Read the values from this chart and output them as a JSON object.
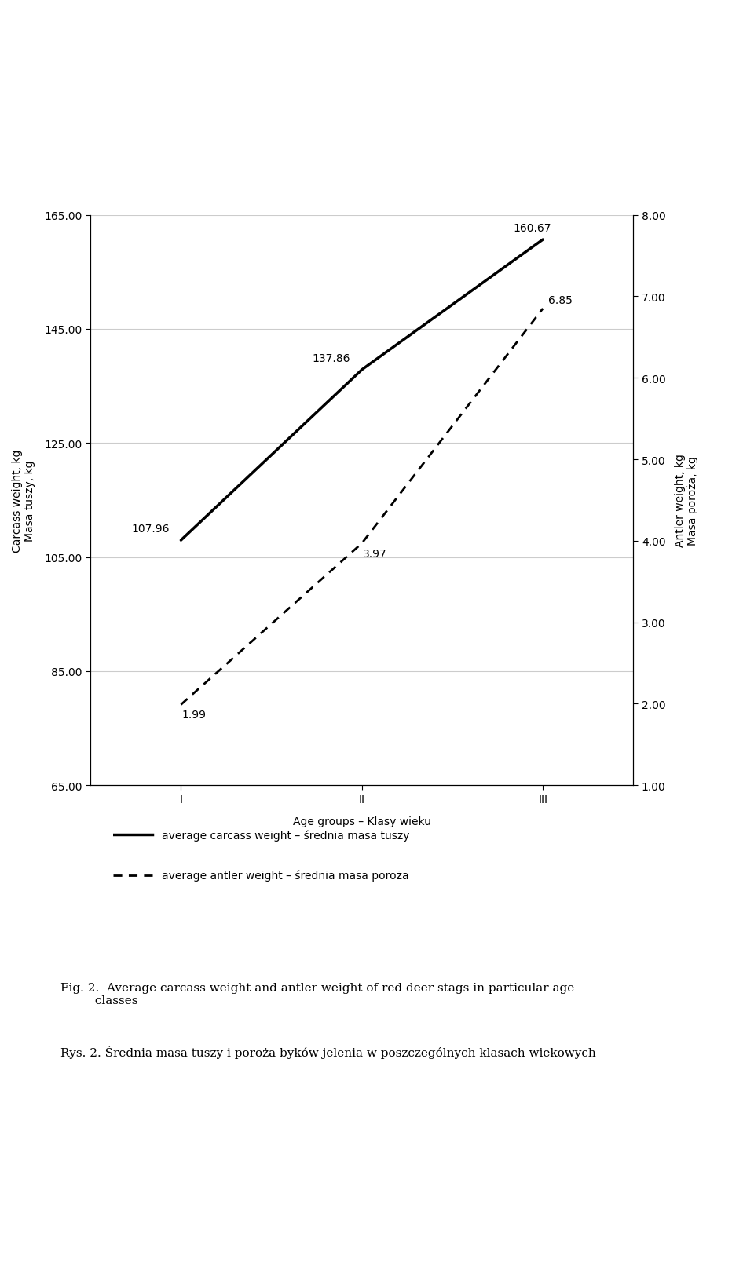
{
  "age_groups": [
    "I",
    "II",
    "III"
  ],
  "carcass_weight": [
    107.96,
    137.86,
    160.67
  ],
  "antler_weight": [
    1.99,
    3.97,
    6.85
  ],
  "left_ylim": [
    65.0,
    165.0
  ],
  "left_yticks": [
    65.0,
    85.0,
    105.0,
    125.0,
    145.0,
    165.0
  ],
  "right_ylim": [
    1.0,
    8.0
  ],
  "right_yticks": [
    1.0,
    2.0,
    3.0,
    4.0,
    5.0,
    6.0,
    7.0,
    8.0
  ],
  "left_ylabel": "Carcass weight, kg\nMasa tuszy, kg",
  "right_ylabel": "Antler weight, kg\nMasa poroża, kg",
  "xlabel": "Age groups – Klasy wieku",
  "legend_carcass": "average carcass weight – średnia masa tuszy",
  "legend_antler": "average antler weight – średnia masa poroża",
  "fig_caption_en": "Fig. 2.  Average carcass weight and antler weight of red deer stags in particular age\n         classes",
  "fig_caption_pl": "Rys. 2. Średnia masa tuszy i poroża byków jelenia w poszczególnych klasach wiekowych",
  "bg_color": "#ffffff",
  "line_color": "#000000",
  "annotation_fontsize": 10,
  "axis_fontsize": 10,
  "label_fontsize": 10,
  "legend_fontsize": 10,
  "caption_fontsize": 11
}
